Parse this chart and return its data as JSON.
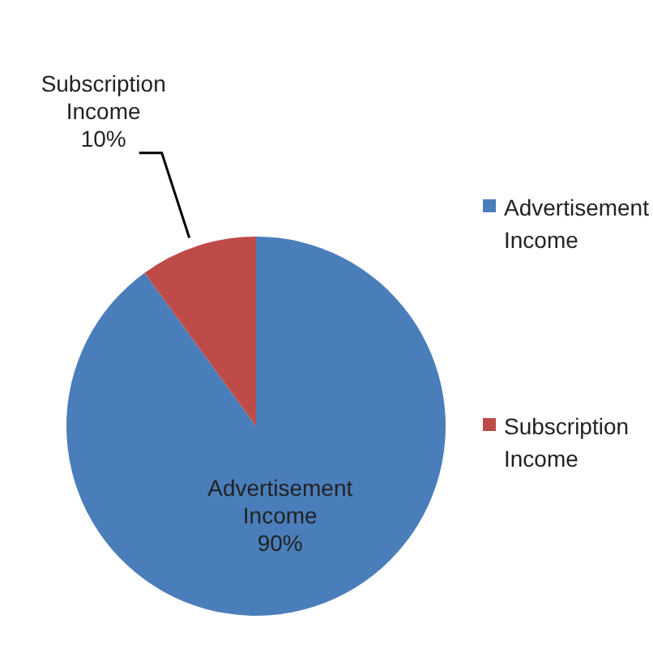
{
  "chart_data": {
    "type": "pie",
    "categories": [
      "Advertisement Income",
      "Subscription Income"
    ],
    "values": [
      90,
      10
    ],
    "colors": [
      "#4a7ebb",
      "#be4b48"
    ],
    "value_labels": [
      "90%",
      "10%"
    ],
    "legend": "right"
  }
}
